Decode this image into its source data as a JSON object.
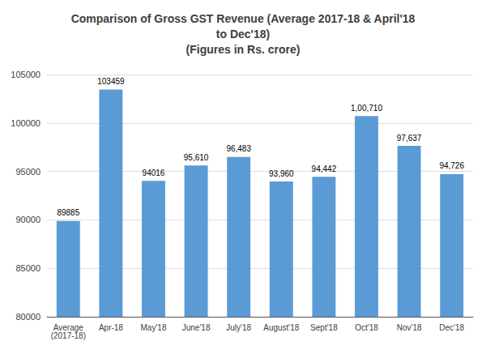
{
  "chart_data": {
    "type": "bar",
    "title": "Comparison of Gross GST Revenue (Average 2017-18 & April'18\nto Dec'18)\n(Figures in Rs. crore)",
    "categories": [
      "Average\n(2017-18)",
      "Apr-18",
      "May'18",
      "June'18",
      "July'18",
      "August'18",
      "Sept'18",
      "Oct'18",
      "Nov'18",
      "Dec'18"
    ],
    "values": [
      89885,
      103459,
      94016,
      95610,
      96483,
      93960,
      94442,
      100710,
      97637,
      94726
    ],
    "value_labels": [
      "89885",
      "103459",
      "94016",
      "95,610",
      "96,483",
      "93,960",
      "94,442",
      "1,00,710",
      "97,637",
      "94,726"
    ],
    "data_labels": true,
    "color": "#5B9BD5",
    "ylim": [
      80000,
      105000
    ],
    "yticks": [
      80000,
      85000,
      90000,
      95000,
      100000,
      105000
    ],
    "grid": true
  }
}
